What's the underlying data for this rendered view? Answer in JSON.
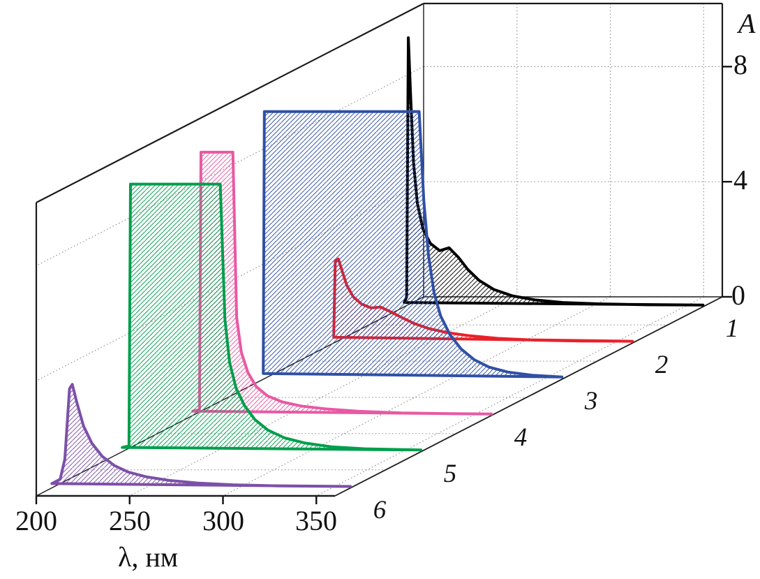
{
  "chart_data": {
    "type": "line",
    "projection": "3d-waterfall",
    "title": "",
    "xlabel": "λ, нм",
    "zlabel": "A",
    "x_ticks": [
      200,
      250,
      300,
      350
    ],
    "z_ticks": [
      0,
      4,
      8
    ],
    "x_range": [
      200,
      360
    ],
    "z_range": [
      0,
      10.2
    ],
    "grid": true,
    "legend_position": "depth-axis-right",
    "series": [
      {
        "label": "1",
        "name": "spectrum-1",
        "color": "#000000",
        "saturated": false,
        "points": [
          [
            200,
            0.15
          ],
          [
            201.3,
            0.35
          ],
          [
            202.2,
            9.35
          ],
          [
            203.5,
            7.2
          ],
          [
            205,
            5.0
          ],
          [
            207,
            3.6
          ],
          [
            210,
            2.7
          ],
          [
            214,
            2.2
          ],
          [
            219,
            1.95
          ],
          [
            224,
            2.05
          ],
          [
            229,
            1.72
          ],
          [
            234,
            1.3
          ],
          [
            240,
            0.92
          ],
          [
            248,
            0.6
          ],
          [
            258,
            0.38
          ],
          [
            270,
            0.24
          ],
          [
            285,
            0.15
          ],
          [
            305,
            0.1
          ],
          [
            330,
            0.07
          ],
          [
            360,
            0.06
          ]
        ]
      },
      {
        "label": "2",
        "name": "spectrum-2",
        "color": "#e8212a",
        "saturated": false,
        "points": [
          [
            200,
            0.2
          ],
          [
            200.8,
            2.85
          ],
          [
            202.5,
            2.92
          ],
          [
            204.5,
            2.5
          ],
          [
            207,
            2.0
          ],
          [
            210.5,
            1.6
          ],
          [
            215,
            1.35
          ],
          [
            220,
            1.22
          ],
          [
            225,
            1.25
          ],
          [
            230,
            1.1
          ],
          [
            236,
            0.9
          ],
          [
            243,
            0.68
          ],
          [
            251,
            0.5
          ],
          [
            261,
            0.36
          ],
          [
            273,
            0.25
          ],
          [
            288,
            0.16
          ],
          [
            308,
            0.1
          ],
          [
            332,
            0.07
          ],
          [
            360,
            0.06
          ]
        ]
      },
      {
        "label": "3",
        "name": "spectrum-3",
        "color": "#3050a5",
        "saturated": true,
        "points": [
          [
            200,
            0.2
          ],
          [
            200.6,
            9.3
          ],
          [
            283.5,
            9.3
          ],
          [
            286,
            6.2
          ],
          [
            288.5,
            4.3
          ],
          [
            291.5,
            3.0
          ],
          [
            295,
            2.2
          ],
          [
            300,
            1.55
          ],
          [
            306,
            1.05
          ],
          [
            313,
            0.68
          ],
          [
            321,
            0.42
          ],
          [
            331,
            0.25
          ],
          [
            344,
            0.14
          ],
          [
            360,
            0.08
          ]
        ]
      },
      {
        "label": "4",
        "name": "spectrum-4",
        "color": "#e859a3",
        "saturated": true,
        "points": [
          [
            200,
            0.15
          ],
          [
            203.6,
            0.2
          ],
          [
            204.4,
            9.15
          ],
          [
            221.5,
            9.15
          ],
          [
            223.5,
            3.4
          ],
          [
            226,
            2.2
          ],
          [
            229.5,
            1.5
          ],
          [
            234,
            1.0
          ],
          [
            240,
            0.68
          ],
          [
            248,
            0.47
          ],
          [
            258,
            0.33
          ],
          [
            271,
            0.23
          ],
          [
            288,
            0.15
          ],
          [
            312,
            0.09
          ],
          [
            340,
            0.06
          ],
          [
            360,
            0.05
          ]
        ]
      },
      {
        "label": "5",
        "name": "spectrum-5",
        "color": "#009e4c",
        "saturated": true,
        "points": [
          [
            200,
            0.15
          ],
          [
            203.6,
            0.2
          ],
          [
            204.4,
            9.3
          ],
          [
            252.5,
            9.3
          ],
          [
            255,
            4.6
          ],
          [
            257.5,
            3.1
          ],
          [
            261,
            2.2
          ],
          [
            265.5,
            1.6
          ],
          [
            271,
            1.12
          ],
          [
            278,
            0.75
          ],
          [
            287,
            0.48
          ],
          [
            298,
            0.3
          ],
          [
            312,
            0.17
          ],
          [
            330,
            0.1
          ],
          [
            360,
            0.06
          ]
        ]
      },
      {
        "label": "6",
        "name": "spectrum-6",
        "color": "#7c50a8",
        "saturated": false,
        "points": [
          [
            200,
            0.15
          ],
          [
            204.5,
            0.3
          ],
          [
            207,
            1.0
          ],
          [
            209.5,
            3.45
          ],
          [
            211,
            3.6
          ],
          [
            213.5,
            2.95
          ],
          [
            217,
            2.15
          ],
          [
            221.5,
            1.55
          ],
          [
            227,
            1.1
          ],
          [
            233.5,
            0.78
          ],
          [
            241,
            0.55
          ],
          [
            251,
            0.38
          ],
          [
            263,
            0.26
          ],
          [
            278,
            0.17
          ],
          [
            297,
            0.11
          ],
          [
            322,
            0.07
          ],
          [
            360,
            0.05
          ]
        ]
      }
    ]
  }
}
